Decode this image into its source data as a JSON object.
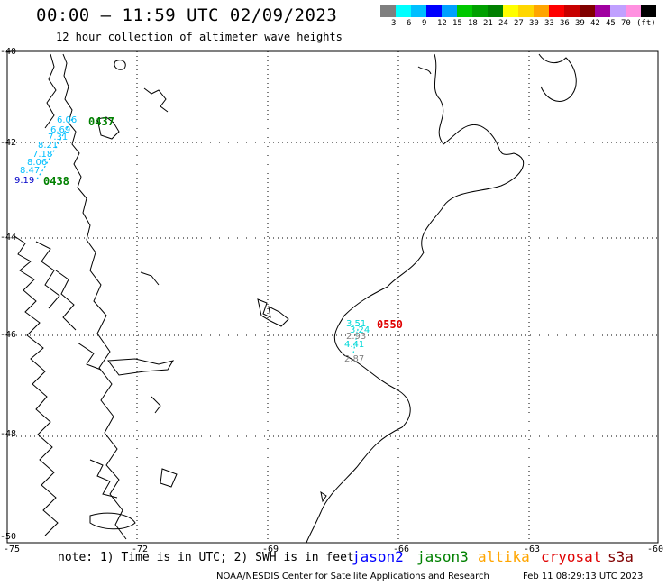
{
  "header": {
    "title": "00:00 – 11:59 UTC 02/09/2023",
    "subtitle": "12 hour collection of altimeter wave heights"
  },
  "scale": {
    "colors": [
      "#7f7f7f",
      "#00ffff",
      "#00bfff",
      "#0000ff",
      "#00a0ff",
      "#00c800",
      "#00a000",
      "#008000",
      "#ffff00",
      "#ffd700",
      "#ffa500",
      "#ff0000",
      "#c80000",
      "#800000",
      "#a000a0",
      "#c0a0ff",
      "#ff90e0",
      "#000000"
    ],
    "labels": [
      "3",
      "6",
      "9",
      "12",
      "15",
      "18",
      "21",
      "24",
      "27",
      "30",
      "33",
      "36",
      "39",
      "42",
      "45",
      "70",
      "(ft)"
    ]
  },
  "axes": {
    "lat_labels": [
      "-40",
      "-42",
      "-44",
      "-46",
      "-48",
      "-50"
    ],
    "lon_labels": [
      "-75",
      "-72",
      "-69",
      "-66",
      "-63",
      "-60"
    ]
  },
  "observations": [
    {
      "text": "6.06",
      "color": "#00bfff"
    },
    {
      "text": "6.69",
      "color": "#00bfff"
    },
    {
      "text": "7.31",
      "color": "#00bfff"
    },
    {
      "text": "8.21",
      "color": "#00bfff"
    },
    {
      "text": "7.18",
      "color": "#00bfff"
    },
    {
      "text": "8.06",
      "color": "#00bfff"
    },
    {
      "text": "8.47",
      "color": "#00bfff"
    },
    {
      "text": "9.19",
      "color": "#0000c8"
    },
    {
      "text": "3.51",
      "color": "#00d8d8"
    },
    {
      "text": "3.24",
      "color": "#00d8d8"
    },
    {
      "text": "2.93",
      "color": "#808080"
    },
    {
      "text": "4.41",
      "color": "#00d8d8"
    },
    {
      "text": "2.87",
      "color": "#808080"
    }
  ],
  "pass_times": [
    {
      "text": "0437",
      "color": "#008000"
    },
    {
      "text": "0438",
      "color": "#008000"
    },
    {
      "text": "0550",
      "color": "#e00000"
    }
  ],
  "note": "note: 1) Time is in UTC; 2) SWH is in feet",
  "legend": [
    {
      "name": "jason2",
      "color": "#0000ff"
    },
    {
      "name": "jason3",
      "color": "#008000"
    },
    {
      "name": "altika",
      "color": "#ffa500"
    },
    {
      "name": "cryosat",
      "color": "#e00000"
    },
    {
      "name": "s3a",
      "color": "#800000"
    }
  ],
  "footer": {
    "credit": "NOAA/NESDIS Center for Satellite Applications and Research",
    "generated": "Feb 11 08:29:13 UTC 2023"
  }
}
